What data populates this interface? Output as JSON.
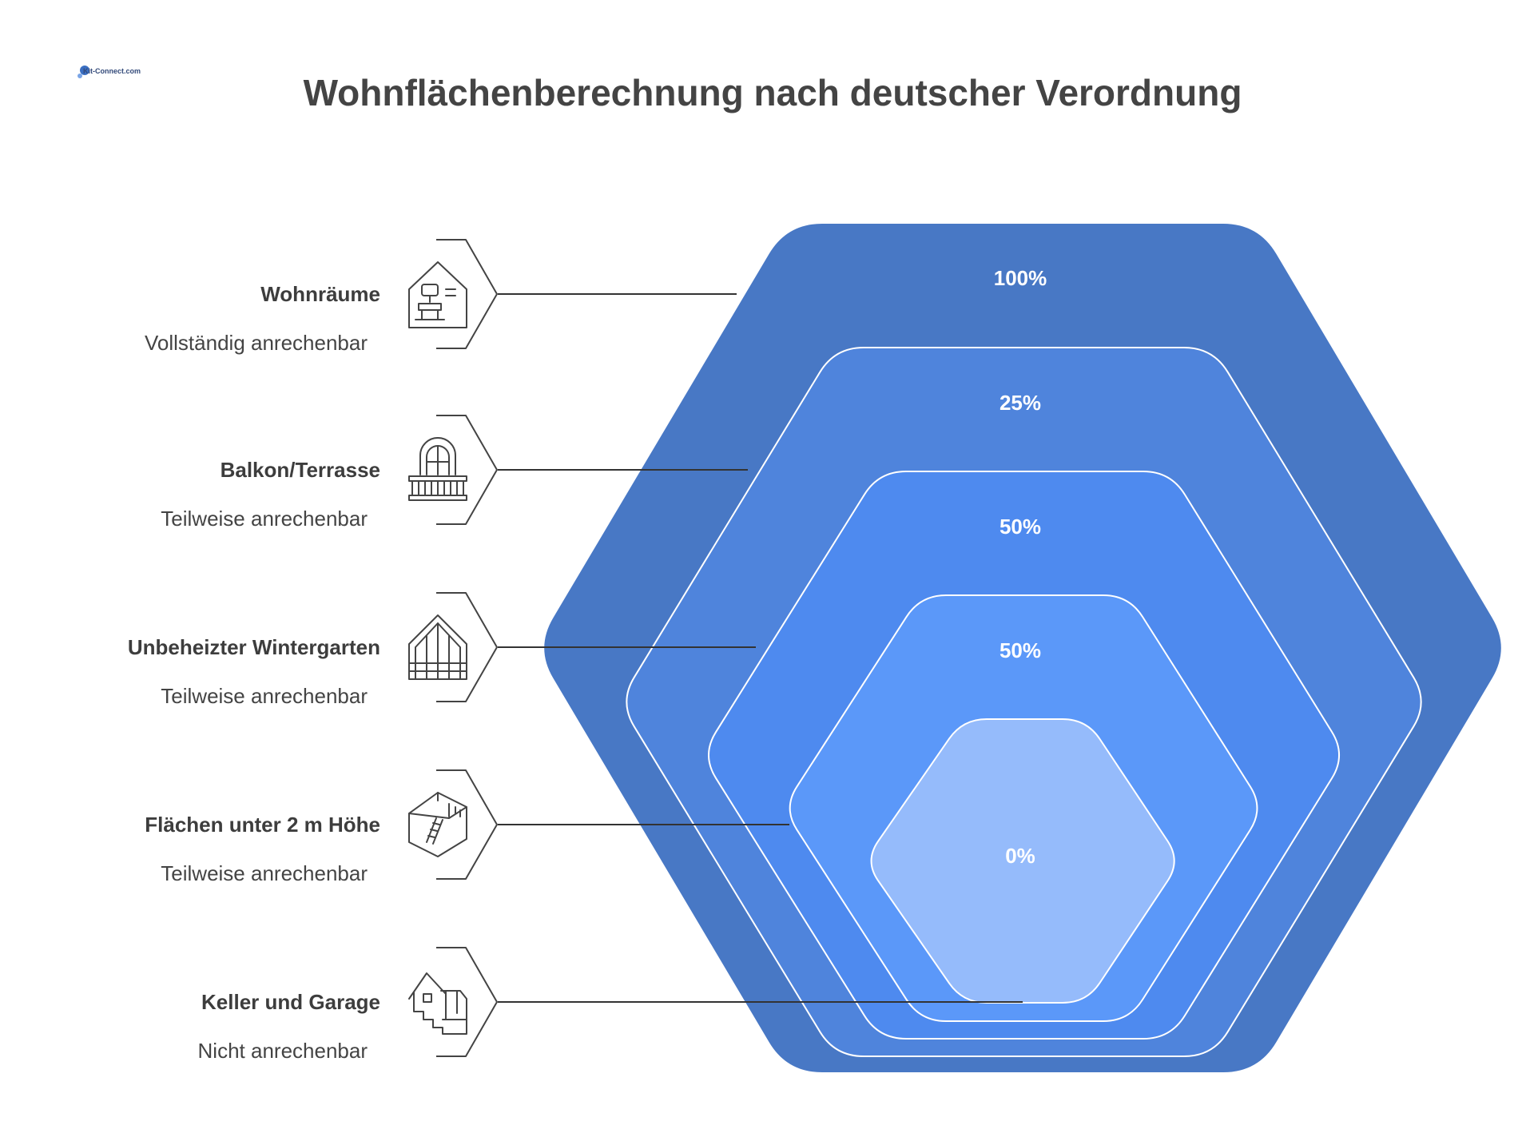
{
  "logo": {
    "text": "Kit-Connect.com"
  },
  "title": "Wohnflächenberechnung nach deutscher Verordnung",
  "layers": [
    {
      "name": "Wohnräume",
      "description": "Vollständig anrechenbar",
      "percent": "100%",
      "color": "#4878c5",
      "icon": "house-interior-icon"
    },
    {
      "name": "Balkon/Terrasse",
      "description": "Teilweise anrechenbar",
      "percent": "25%",
      "color": "#4f84dc",
      "icon": "balcony-icon"
    },
    {
      "name": "Unbeheizter Wintergarten",
      "description": "Teilweise anrechenbar",
      "percent": "50%",
      "color": "#4e8aef",
      "icon": "greenhouse-icon"
    },
    {
      "name": "Flächen unter 2 m Höhe",
      "description": "Teilweise anrechenbar",
      "percent": "50%",
      "color": "#5b98f9",
      "icon": "attic-ladder-icon"
    },
    {
      "name": "Keller und Garage",
      "description": "Nicht anrechenbar",
      "percent": "0%",
      "color": "#95bbfb",
      "icon": "basement-garage-icon"
    }
  ]
}
